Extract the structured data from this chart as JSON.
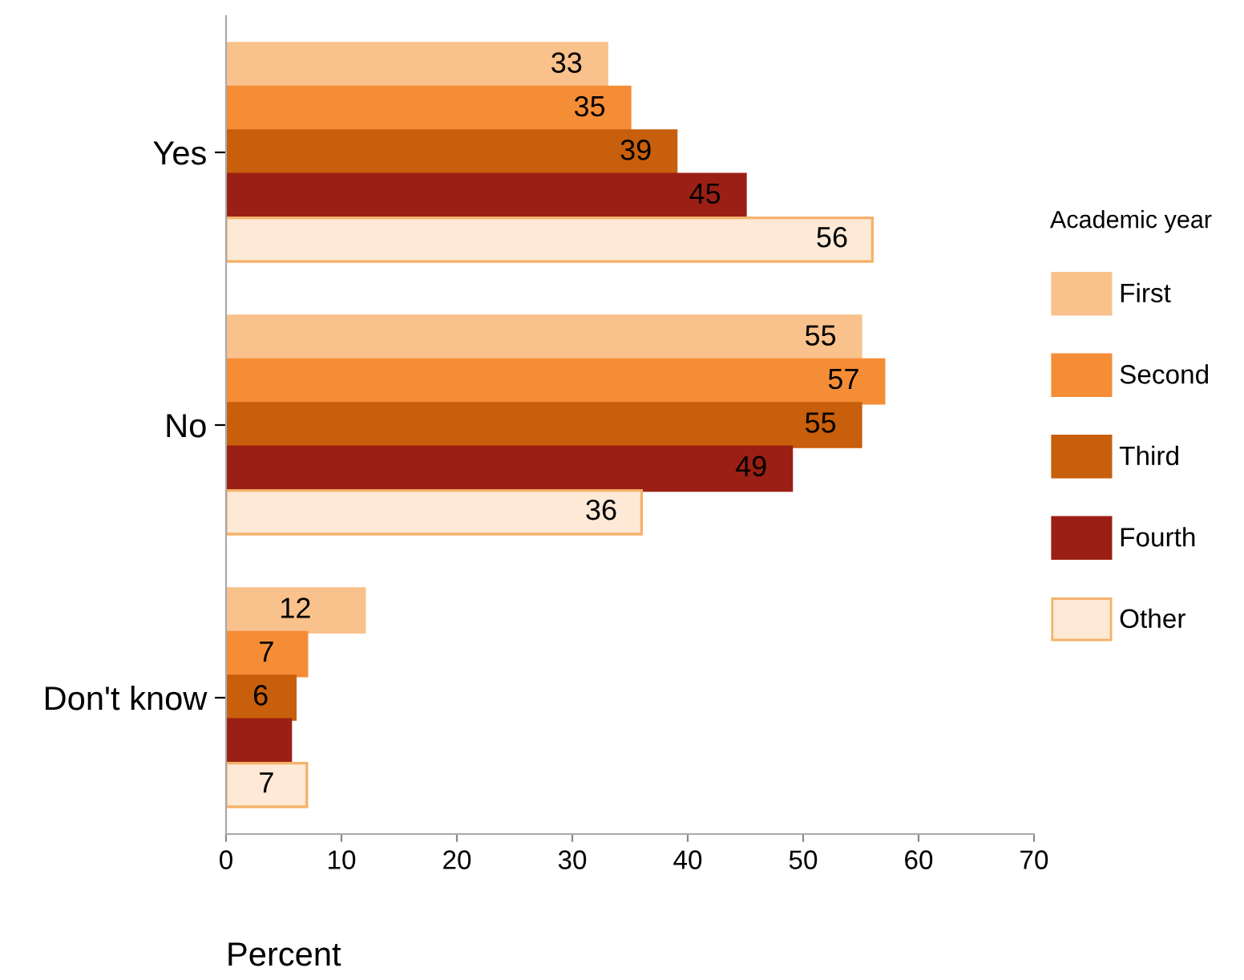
{
  "chart_data": {
    "type": "bar",
    "orientation": "horizontal",
    "categories": [
      "Yes",
      "No",
      "Don't know"
    ],
    "xlabel": "Percent",
    "legend_title": "Academic year",
    "series": [
      {
        "name": "First",
        "color": "#f9c18b",
        "values": [
          33,
          55,
          12
        ],
        "value_labels": [
          "33",
          "55",
          "12"
        ]
      },
      {
        "name": "Second",
        "color": "#f58d37",
        "values": [
          35,
          57,
          7
        ],
        "value_labels": [
          "35",
          "57",
          "7"
        ]
      },
      {
        "name": "Third",
        "color": "#c85f0c",
        "values": [
          39,
          55,
          6
        ],
        "value_labels": [
          "39",
          "55",
          "6"
        ]
      },
      {
        "name": "Fourth",
        "color": "#9b1f14",
        "values": [
          45,
          49,
          5.6
        ],
        "value_labels": [
          "45",
          "49",
          null
        ]
      },
      {
        "name": "Other",
        "color": "#fde9d5",
        "values": [
          56,
          36,
          7
        ],
        "value_labels": [
          "56",
          "36",
          "7"
        ]
      }
    ],
    "xlim": [
      0,
      70
    ],
    "xticks": [
      0,
      10,
      20,
      30,
      40,
      50,
      60,
      70
    ],
    "grid": false,
    "legend": "right"
  }
}
